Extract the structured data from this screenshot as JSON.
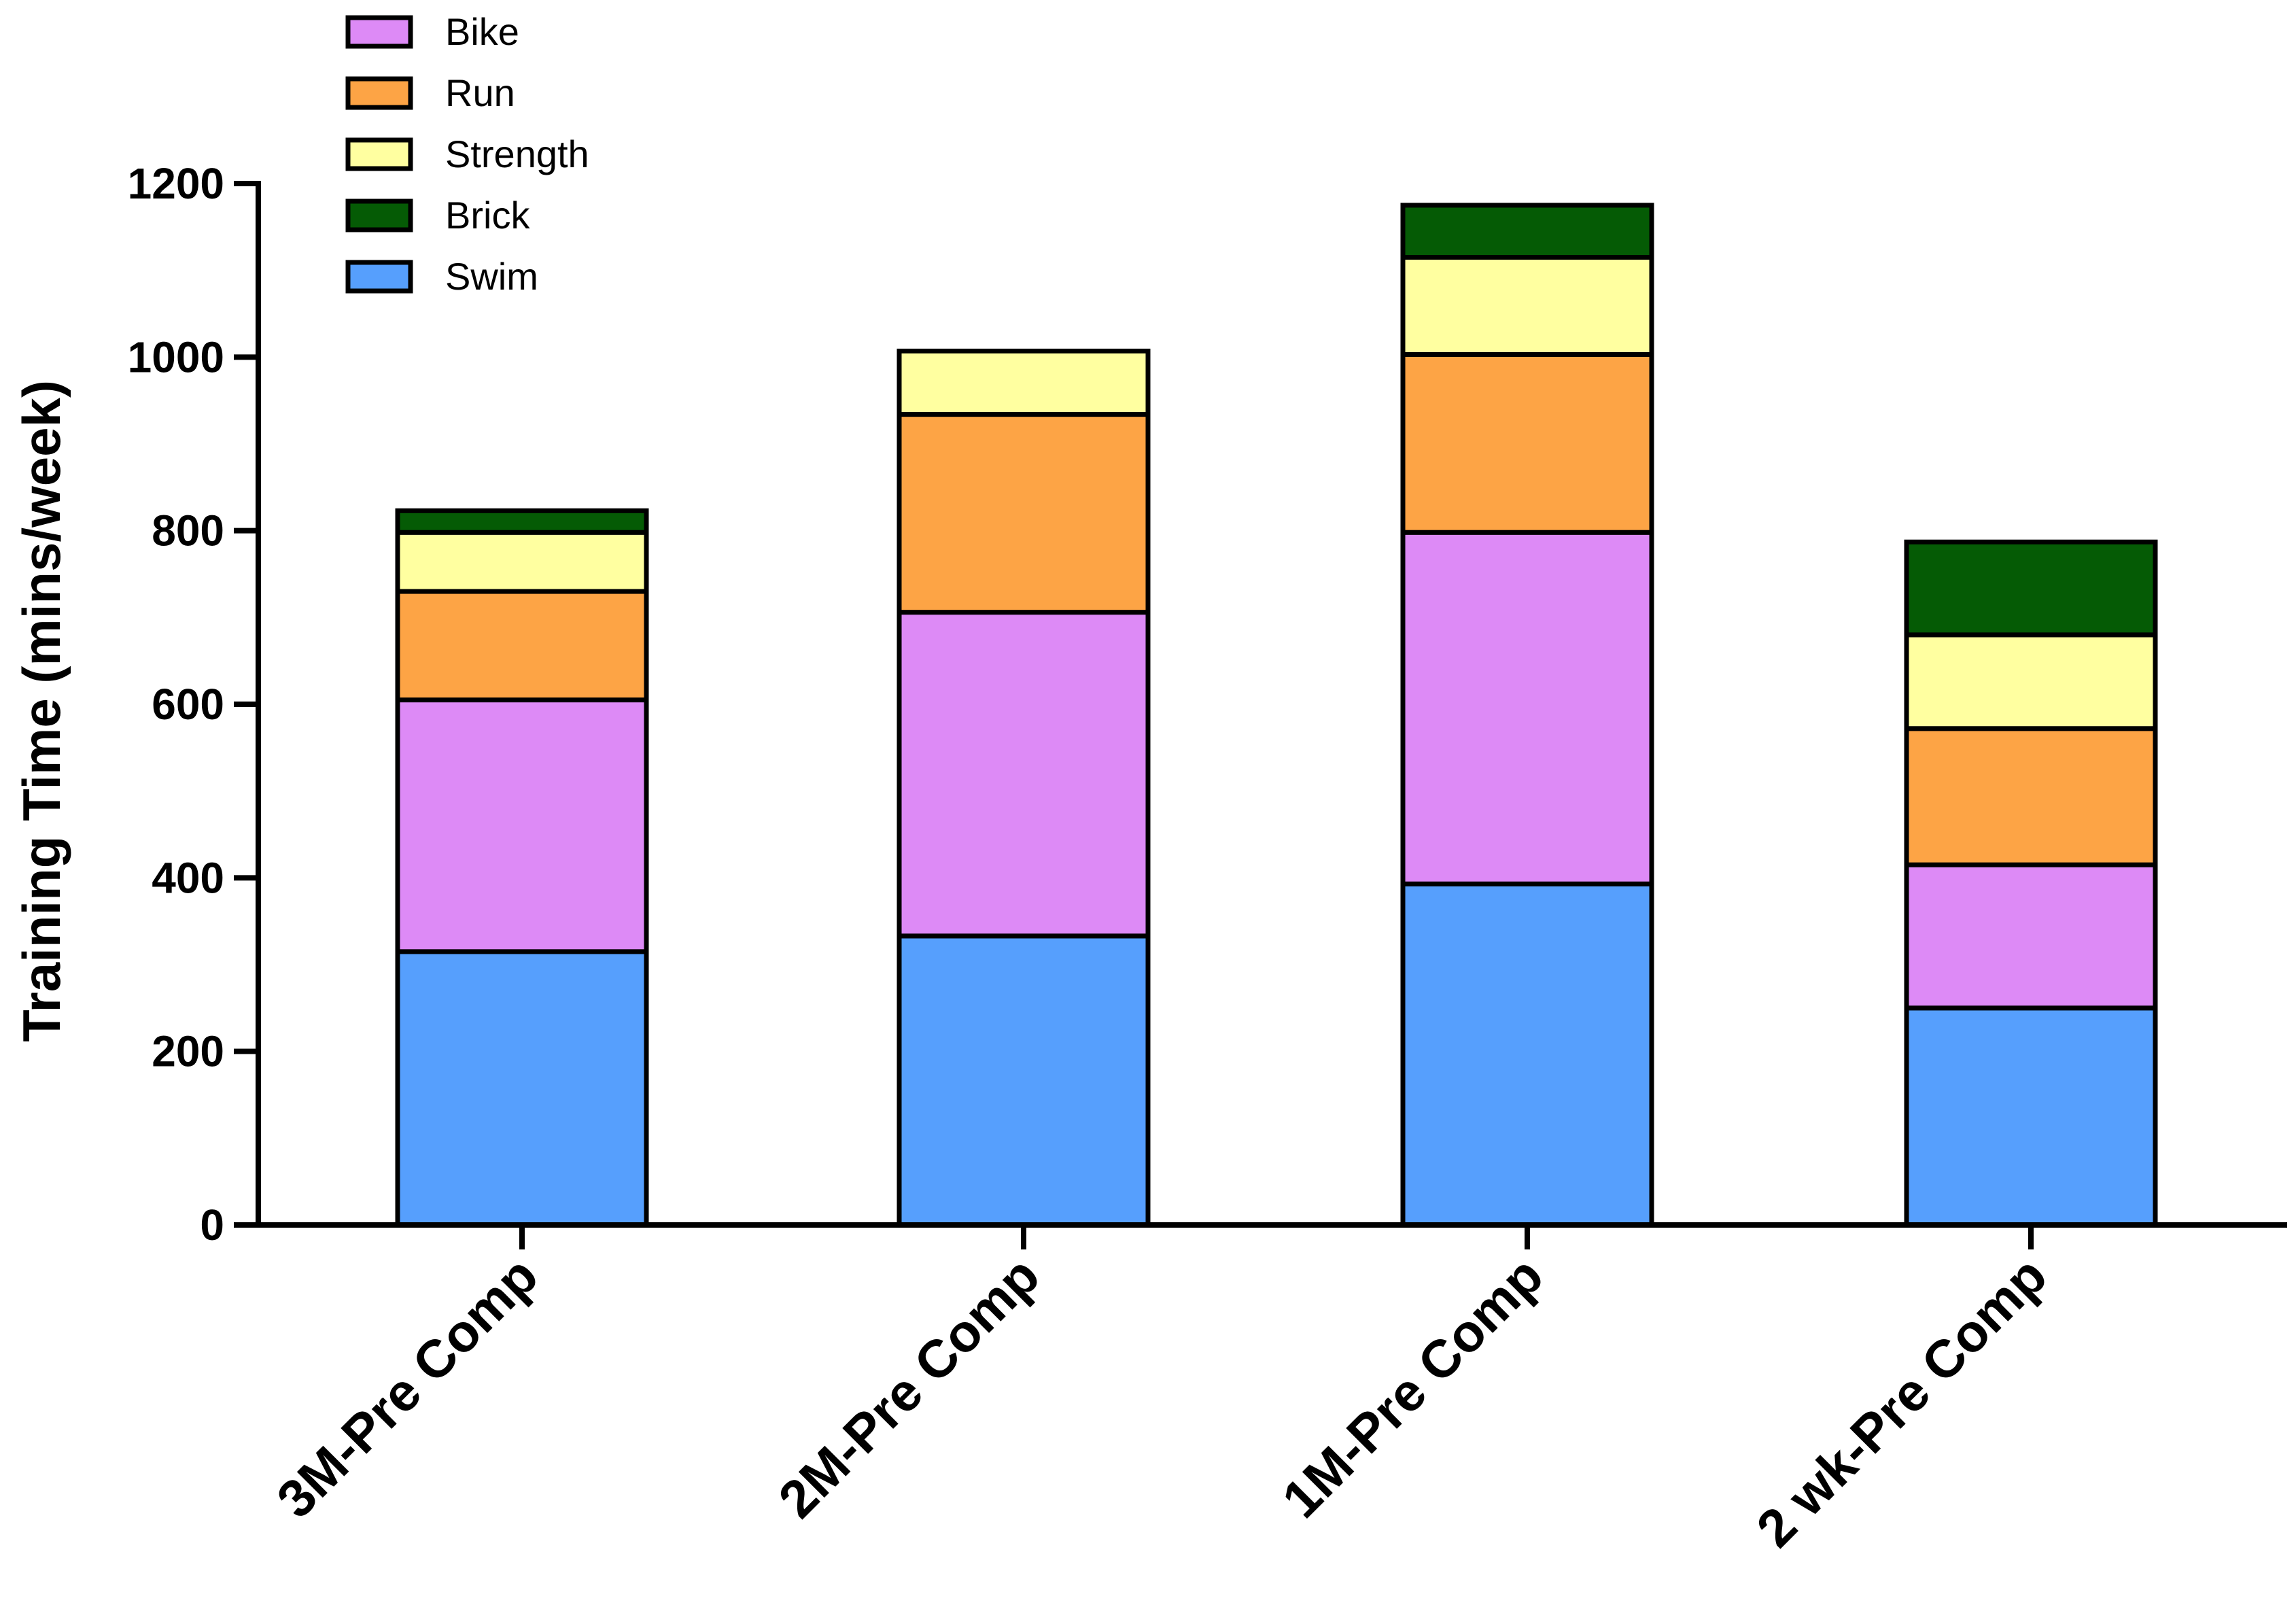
{
  "chart_data": {
    "type": "bar",
    "stacked": true,
    "title": "",
    "xlabel": "",
    "ylabel": "Training Time (mins/week)",
    "ylim": [
      0,
      1200
    ],
    "yticks": [
      0,
      200,
      400,
      600,
      800,
      1000,
      1200
    ],
    "ytick_labels": [
      "0",
      "200",
      "400",
      "600",
      "800",
      "1000",
      "1200"
    ],
    "grid": false,
    "legend_position": "top-left",
    "categories": [
      "3M-Pre Comp",
      "2M-Pre Comp",
      "1M-Pre Comp",
      "2 wk-Pre Comp"
    ],
    "series": [
      {
        "name": "Swim",
        "color": "#569ffd",
        "values": [
          315,
          333,
          393,
          250
        ]
      },
      {
        "name": "Bike",
        "color": "#dd8af6",
        "values": [
          290,
          373,
          405,
          165
        ]
      },
      {
        "name": "Run",
        "color": "#fda445",
        "values": [
          125,
          228,
          205,
          157
        ]
      },
      {
        "name": "Strength",
        "color": "#ffffa0",
        "values": [
          68,
          73,
          112,
          108
        ]
      },
      {
        "name": "Brick",
        "color": "#055b05",
        "values": [
          25,
          0,
          60,
          107
        ]
      }
    ],
    "legend_order": [
      "Bike",
      "Run",
      "Strength",
      "Brick",
      "Swim"
    ]
  }
}
